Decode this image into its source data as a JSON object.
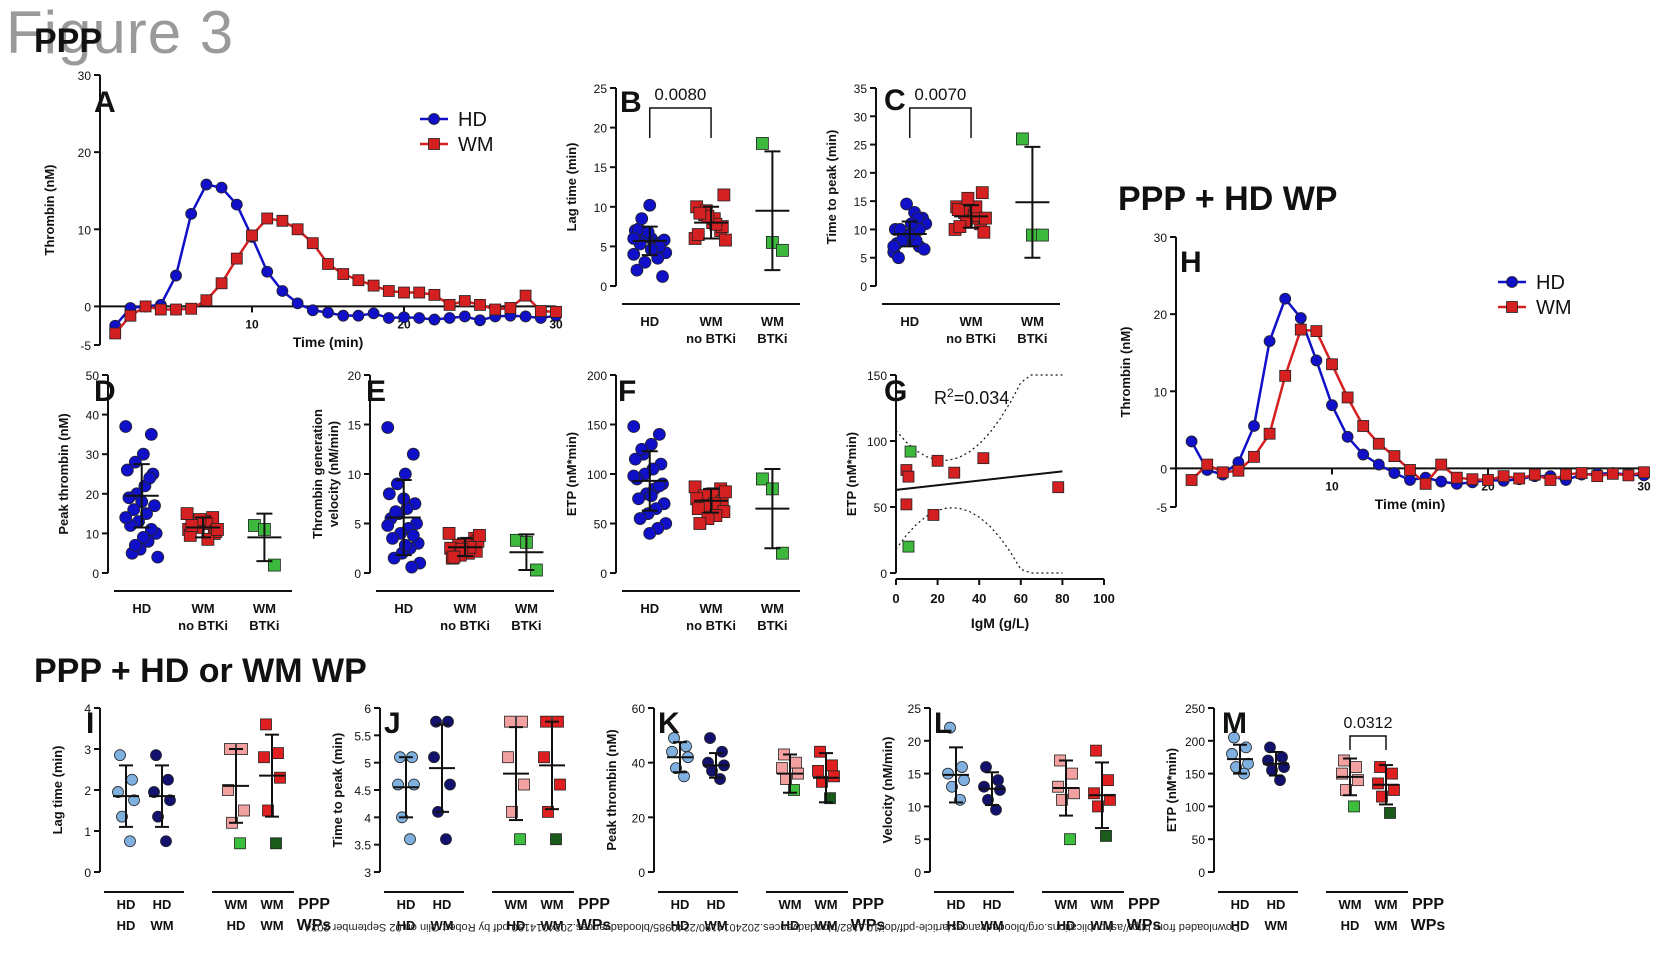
{
  "figure_label": "Figure 3",
  "section_top": "PPP",
  "section_h": "PPP + HD WP",
  "section_bottom": "PPP + HD or WM WP",
  "footer_text": "Downloaded from http://ashpublications.org/bloodadvances/article-pdf/doi/10.1182/bloodadvances.2024014190/2240985/bloodadvances.2024014190.pdf by Robert Olin on 02 September 2024",
  "colors": {
    "hd": "#1010c8",
    "wm": "#d42020",
    "btki": "#3cb83c",
    "hd_light": "#7fb0e0",
    "hd_dark": "#12126e",
    "wm_light": "#f2a0a0",
    "wm_dark": "#e02020",
    "green_light": "#3cbf3c",
    "green_dark": "#1a5a1a"
  },
  "chart_data": [
    {
      "panel": "A",
      "type": "line",
      "xlabel": "Time (min)",
      "ylabel": "Thrombin (nM)",
      "xlim": [
        0,
        30
      ],
      "ylim": [
        -5,
        30
      ],
      "xticks": [
        10,
        20,
        30
      ],
      "yticks": [
        -5,
        0,
        10,
        20,
        30
      ],
      "legend": [
        "HD",
        "WM"
      ],
      "legend_position": "top-right",
      "series": [
        {
          "name": "HD",
          "x": [
            1,
            2,
            3,
            4,
            5,
            6,
            7,
            8,
            9,
            10,
            11,
            12,
            13,
            14,
            15,
            16,
            17,
            18,
            19,
            20,
            21,
            22,
            23,
            24,
            25,
            26,
            27,
            28,
            29,
            30
          ],
          "values": [
            -2.5,
            -0.2,
            0,
            0.2,
            4,
            12,
            15.8,
            15.4,
            13.2,
            9,
            4.5,
            2,
            0.4,
            -0.5,
            -0.8,
            -1.2,
            -1.2,
            -0.9,
            -1.5,
            -1.4,
            -1.5,
            -1.7,
            -1.5,
            -1.3,
            -1.8,
            -1.3,
            -1.2,
            -1.3,
            -1.5,
            -1.2
          ]
        },
        {
          "name": "WM",
          "x": [
            1,
            2,
            3,
            4,
            5,
            6,
            7,
            8,
            9,
            10,
            11,
            12,
            13,
            14,
            15,
            16,
            17,
            18,
            19,
            20,
            21,
            22,
            23,
            24,
            25,
            26,
            27,
            28,
            29,
            30
          ],
          "values": [
            -3.5,
            -1.2,
            0,
            -0.4,
            -0.4,
            -0.3,
            0.8,
            3,
            6.2,
            9.2,
            11.4,
            11.1,
            10,
            8.2,
            5.5,
            4.2,
            3.4,
            2.7,
            2,
            1.8,
            1.8,
            1.5,
            0.2,
            0.7,
            0.2,
            -0.4,
            -0.2,
            1.4,
            -0.6,
            -0.7
          ]
        }
      ]
    },
    {
      "panel": "B",
      "type": "scatter",
      "ylabel": "Lag time (min)",
      "ylim": [
        0,
        25
      ],
      "yticks": [
        0,
        5,
        10,
        15,
        20,
        25
      ],
      "groups": [
        "HD",
        "WM no BTKi",
        "WM BTKi"
      ],
      "means": [
        5.7,
        8.0,
        9.5
      ],
      "sd": [
        1.8,
        2.0,
        7.5
      ],
      "annotation": "0.0080",
      "points": [
        [
          4,
          5,
          6,
          6.5,
          7,
          5.5,
          4.5,
          3,
          2,
          1.2,
          5.2,
          6.2,
          7.2,
          5.8,
          4.8,
          6.8,
          5.3,
          4.2,
          3.5,
          10.2,
          8.5,
          6,
          5,
          4.6
        ],
        [
          6,
          7,
          8,
          9,
          10,
          7.5,
          8.5,
          9.5,
          6.5,
          11.5,
          7.8,
          8.8,
          9.2,
          5.8
        ],
        [
          18,
          5.5,
          4.5
        ]
      ]
    },
    {
      "panel": "C",
      "type": "scatter",
      "ylabel": "Time to peak (min)",
      "ylim": [
        0,
        35
      ],
      "yticks": [
        0,
        5,
        10,
        15,
        20,
        25,
        30,
        35
      ],
      "groups": [
        "HD",
        "WM no BTKi",
        "WM BTKi"
      ],
      "means": [
        9.2,
        12.3,
        14.8
      ],
      "sd": [
        2.2,
        2.0,
        9.8
      ],
      "annotation": "0.0070",
      "points": [
        [
          6,
          7,
          8,
          9,
          10,
          11,
          9.5,
          8.5,
          7.5,
          12,
          13,
          14.5,
          5,
          6.5,
          8,
          9,
          10,
          11,
          12,
          9,
          8,
          7,
          10,
          11
        ],
        [
          10,
          11,
          12,
          13,
          14,
          16.5,
          12.5,
          11.5,
          13.5,
          9.5,
          14,
          15.5,
          10.5,
          12
        ],
        [
          26,
          9,
          9
        ]
      ]
    },
    {
      "panel": "D",
      "type": "scatter",
      "ylabel": "Peak thrombin (nM)",
      "ylim": [
        0,
        50
      ],
      "yticks": [
        0,
        10,
        20,
        30,
        40,
        50
      ],
      "groups": [
        "HD",
        "WM no BTKi",
        "WM BTKi"
      ],
      "means": [
        19.5,
        11.5,
        9
      ],
      "sd": [
        8,
        2.5,
        6
      ],
      "points": [
        [
          37,
          35,
          30,
          28,
          26,
          25,
          22,
          20,
          19,
          17,
          15,
          13,
          12,
          10,
          8,
          6,
          5,
          4,
          24,
          18,
          16,
          14,
          11,
          9,
          7
        ],
        [
          15,
          14,
          13,
          12,
          11,
          10,
          12.5,
          11.5,
          9.5,
          10.5,
          8.5,
          13.5,
          12,
          11
        ],
        [
          12,
          11,
          2
        ]
      ]
    },
    {
      "panel": "E",
      "type": "scatter",
      "ylabel": "Thrombin generation velocity (nM/min)",
      "ylim": [
        0,
        20
      ],
      "yticks": [
        0,
        5,
        10,
        15,
        20
      ],
      "groups": [
        "HD",
        "WM no BTKi",
        "WM BTKi"
      ],
      "means": [
        5.6,
        2.6,
        2.1
      ],
      "sd": [
        3.8,
        0.9,
        1.8
      ],
      "points": [
        [
          14.7,
          12,
          10,
          9,
          8,
          7,
          6.5,
          6,
          5.5,
          5,
          4.5,
          4,
          3.5,
          3,
          2.5,
          2,
          1.5,
          1,
          0.6,
          7.5,
          6.2,
          4.8,
          3.8,
          2.8
        ],
        [
          4,
          3.5,
          3,
          2.8,
          2.5,
          2.2,
          2,
          1.8,
          1.5,
          3.2,
          2.6,
          2.4,
          1.6,
          3.8
        ],
        [
          3.3,
          3.1,
          0.3
        ]
      ]
    },
    {
      "panel": "F",
      "type": "scatter",
      "ylabel": "ETP (nM*min)",
      "ylim": [
        0,
        200
      ],
      "yticks": [
        0,
        50,
        100,
        150,
        200
      ],
      "groups": [
        "HD",
        "WM no BTKi",
        "WM BTKi"
      ],
      "means": [
        93,
        73,
        65
      ],
      "sd": [
        30,
        12,
        40
      ],
      "points": [
        [
          148,
          140,
          130,
          120,
          115,
          110,
          105,
          100,
          95,
          90,
          85,
          80,
          75,
          70,
          65,
          60,
          55,
          50,
          45,
          40,
          125,
          98,
          88,
          78
        ],
        [
          87,
          85,
          80,
          78,
          75,
          72,
          70,
          68,
          65,
          62,
          58,
          55,
          50,
          82
        ],
        [
          95,
          85,
          20
        ]
      ]
    },
    {
      "panel": "G",
      "type": "scatter",
      "xlabel": "IgM (g/L)",
      "ylabel": "ETP (nM*min)",
      "xlim": [
        0,
        100
      ],
      "ylim": [
        0,
        150
      ],
      "xticks": [
        0,
        20,
        40,
        60,
        80,
        100
      ],
      "yticks": [
        0,
        50,
        100,
        150
      ],
      "annotation": "R2=0.034",
      "points": [
        {
          "x": 7,
          "y": 92,
          "g": "btki"
        },
        {
          "x": 5,
          "y": 78,
          "g": "wm"
        },
        {
          "x": 6,
          "y": 73,
          "g": "wm"
        },
        {
          "x": 20,
          "y": 85,
          "g": "wm"
        },
        {
          "x": 28,
          "y": 76,
          "g": "wm"
        },
        {
          "x": 42,
          "y": 87,
          "g": "wm"
        },
        {
          "x": 5,
          "y": 52,
          "g": "wm"
        },
        {
          "x": 18,
          "y": 44,
          "g": "wm"
        },
        {
          "x": 78,
          "y": 65,
          "g": "wm"
        },
        {
          "x": 6,
          "y": 20,
          "g": "btki"
        }
      ],
      "fit": {
        "x": [
          0,
          80
        ],
        "y": [
          63,
          77
        ]
      }
    },
    {
      "panel": "H",
      "type": "line",
      "xlabel": "Time (min)",
      "ylabel": "Thrombin (nM)",
      "xlim": [
        0,
        30
      ],
      "ylim": [
        -5,
        30
      ],
      "xticks": [
        10,
        20,
        30
      ],
      "yticks": [
        -5,
        0,
        10,
        20,
        30
      ],
      "legend": [
        "HD",
        "WM"
      ],
      "legend_position": "top-right",
      "series": [
        {
          "name": "HD",
          "x": [
            1,
            2,
            3,
            4,
            5,
            6,
            7,
            8,
            9,
            10,
            11,
            12,
            13,
            14,
            15,
            16,
            17,
            18,
            19,
            20,
            21,
            22,
            23,
            24,
            25,
            26,
            27,
            28,
            29,
            30
          ],
          "values": [
            3.5,
            -0.2,
            -0.8,
            0.8,
            5.5,
            16.5,
            22,
            19.5,
            14,
            8.2,
            4.1,
            1.8,
            0.5,
            -0.6,
            -1.5,
            -1.2,
            -1.7,
            -2,
            -1.8,
            -1.5,
            -1.6,
            -1.4,
            -1,
            -1,
            -1.5,
            -0.8,
            -0.7,
            -0.6,
            -0.8,
            -0.9
          ]
        },
        {
          "name": "WM",
          "x": [
            1,
            2,
            3,
            4,
            5,
            6,
            7,
            8,
            9,
            10,
            11,
            12,
            13,
            14,
            15,
            16,
            17,
            18,
            19,
            20,
            21,
            22,
            23,
            24,
            25,
            26,
            27,
            28,
            29,
            30
          ],
          "values": [
            -1.5,
            0.5,
            -0.5,
            -0.3,
            1.5,
            4.5,
            12,
            18,
            17.8,
            13.5,
            9.2,
            5.5,
            3.2,
            1.6,
            -0.2,
            -2,
            0.5,
            -1.2,
            -1.4,
            -1.5,
            -1,
            -1.3,
            -0.8,
            -1.5,
            -0.8,
            -0.6,
            -1,
            -0.7,
            -0.9,
            -0.5
          ]
        }
      ]
    },
    {
      "panel": "I",
      "type": "scatter",
      "ylabel": "Lag time (min)",
      "ylim": [
        0,
        4
      ],
      "yticks": [
        0,
        1,
        2,
        3,
        4
      ],
      "groups": [
        "HD/HD",
        "HD/WM",
        "WM/HD",
        "WM/WM"
      ],
      "means": [
        1.85,
        1.85,
        2.1,
        2.35
      ],
      "sd": [
        0.75,
        0.75,
        0.9,
        1.0
      ],
      "points": [
        [
          2.85,
          2.25,
          1.95,
          1.75,
          1.35,
          0.75
        ],
        [
          2.85,
          2.25,
          1.95,
          1.75,
          1.35,
          0.75
        ],
        [
          3.0,
          3.0,
          2.0,
          1.5,
          1.2,
          0.7
        ],
        [
          3.6,
          2.9,
          2.8,
          2.3,
          1.5,
          0.7
        ]
      ],
      "axis_labels": {
        "row1": [
          "HD",
          "HD",
          "WM",
          "WM",
          "PPP"
        ],
        "row2": [
          "HD",
          "WM",
          "HD",
          "WM",
          "WPs"
        ]
      }
    },
    {
      "panel": "J",
      "type": "scatter",
      "ylabel": "Time to peak (min)",
      "ylim": [
        3.0,
        6.0
      ],
      "yticks": [
        3.0,
        3.5,
        4.0,
        4.5,
        5.0,
        5.5,
        6.0
      ],
      "groups": [
        "HD/HD",
        "HD/WM",
        "WM/HD",
        "WM/WM"
      ],
      "means": [
        4.55,
        4.9,
        4.8,
        4.95
      ],
      "sd": [
        0.55,
        0.8,
        0.85,
        0.8
      ],
      "points": [
        [
          5.1,
          5.1,
          4.6,
          4.6,
          4.0,
          3.6
        ],
        [
          5.75,
          5.75,
          5.1,
          4.6,
          4.1,
          3.6
        ],
        [
          5.75,
          5.75,
          5.1,
          4.6,
          4.1,
          3.6
        ],
        [
          5.75,
          5.75,
          5.1,
          4.6,
          4.1,
          3.6
        ]
      ],
      "axis_labels": {
        "row1": [
          "HD",
          "HD",
          "WM",
          "WM",
          "PPP"
        ],
        "row2": [
          "HD",
          "WM",
          "HD",
          "WM",
          "WPs"
        ]
      }
    },
    {
      "panel": "K",
      "type": "scatter",
      "ylabel": "Peak thrombin (nM)",
      "ylim": [
        0,
        60
      ],
      "yticks": [
        0,
        20,
        40,
        60
      ],
      "groups": [
        "HD/HD",
        "HD/WM",
        "WM/HD",
        "WM/WM"
      ],
      "means": [
        42,
        39,
        36,
        34.5
      ],
      "sd": [
        5.5,
        4.5,
        7,
        9
      ],
      "points": [
        [
          49,
          46,
          44,
          42,
          38,
          35
        ],
        [
          49,
          44,
          40,
          39,
          37,
          34
        ],
        [
          43,
          40,
          38,
          36,
          34,
          30
        ],
        [
          44,
          39,
          37,
          35,
          33,
          27
        ]
      ],
      "axis_labels": {
        "row1": [
          "HD",
          "HD",
          "WM",
          "WM",
          "PPP"
        ],
        "row2": [
          "HD",
          "WM",
          "HD",
          "WM",
          "WPs"
        ]
      }
    },
    {
      "panel": "L",
      "type": "scatter",
      "ylabel": "Velocity (nM/min)",
      "ylim": [
        0,
        25
      ],
      "yticks": [
        0,
        5,
        10,
        15,
        20,
        25
      ],
      "groups": [
        "HD/HD",
        "HD/WM",
        "WM/HD",
        "WM/WM"
      ],
      "means": [
        14.8,
        12.7,
        12.8,
        11.7
      ],
      "sd": [
        4.2,
        2.5,
        4.2,
        5
      ],
      "points": [
        [
          22,
          16,
          15,
          14,
          13,
          11
        ],
        [
          16,
          14,
          13,
          12.5,
          11,
          9.5
        ],
        [
          17,
          15,
          13,
          12,
          11,
          5
        ],
        [
          18.5,
          14,
          12,
          11,
          10,
          5.5
        ]
      ],
      "axis_labels": {
        "row1": [
          "HD",
          "HD",
          "WM",
          "WM",
          "PPP"
        ],
        "row2": [
          "HD",
          "WM",
          "HD",
          "WM",
          "WPs"
        ]
      }
    },
    {
      "panel": "M",
      "type": "scatter",
      "ylabel": "ETP (nM*min)",
      "ylim": [
        0,
        250
      ],
      "yticks": [
        0,
        50,
        100,
        150,
        200,
        250
      ],
      "groups": [
        "HD/HD",
        "HD/WM",
        "WM/HD",
        "WM/WM"
      ],
      "means": [
        172,
        165,
        145,
        133
      ],
      "sd": [
        22,
        18,
        28,
        30
      ],
      "annotation": "0.0312",
      "points": [
        [
          205,
          190,
          180,
          165,
          160,
          150
        ],
        [
          190,
          175,
          170,
          160,
          155,
          140
        ],
        [
          170,
          160,
          150,
          140,
          125,
          100
        ],
        [
          160,
          150,
          135,
          125,
          115,
          90
        ]
      ],
      "axis_labels": {
        "row1": [
          "HD",
          "HD",
          "WM",
          "WM",
          "PPP"
        ],
        "row2": [
          "HD",
          "WM",
          "HD",
          "WM",
          "WPs"
        ]
      }
    }
  ]
}
